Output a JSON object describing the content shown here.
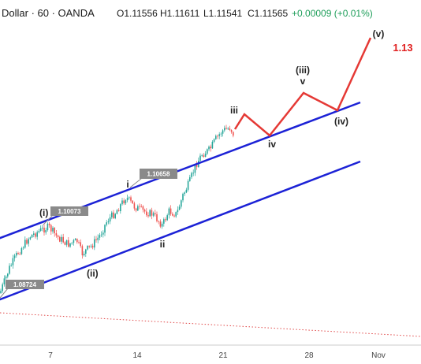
{
  "header": {
    "symbol": "Dollar · 60 · OANDA",
    "open": "O1.11556",
    "high": "H1.11611",
    "low": "L1.11541",
    "close": "C1.11565",
    "change": "+0.00009 (+0.01%)",
    "colors": {
      "text": "#1a1a1a",
      "value": "#1e9e5a"
    }
  },
  "chart_data": {
    "type": "line",
    "xlabel": "",
    "ylabel": "",
    "x_ticks": [
      "7",
      "14",
      "21",
      "28",
      "Nov"
    ],
    "price_tags": [
      {
        "label": "1.08724",
        "price": 1.0872
      },
      {
        "label": "1.10073",
        "price": 1.1007
      },
      {
        "label": "1.10658",
        "price": 1.1066
      }
    ],
    "wave_labels": [
      {
        "text": "(i)",
        "kind": "actual"
      },
      {
        "text": "(ii)",
        "kind": "actual"
      },
      {
        "text": "i",
        "kind": "actual"
      },
      {
        "text": "ii",
        "kind": "actual"
      },
      {
        "text": "iii",
        "kind": "actual"
      },
      {
        "text": "iv",
        "kind": "projected"
      },
      {
        "text": "v",
        "kind": "projected"
      },
      {
        "text": "(iii)",
        "kind": "projected"
      },
      {
        "text": "(iv)",
        "kind": "projected"
      },
      {
        "text": "(v)",
        "kind": "projected"
      }
    ],
    "target": "1.13",
    "colors": {
      "up": "#26a69a",
      "down": "#ef5350",
      "channel": "#1c22d6",
      "projection": "#e53935",
      "target_text": "#e02020",
      "tag_bg": "#8a8a8a",
      "dotted": "#e04848"
    }
  }
}
